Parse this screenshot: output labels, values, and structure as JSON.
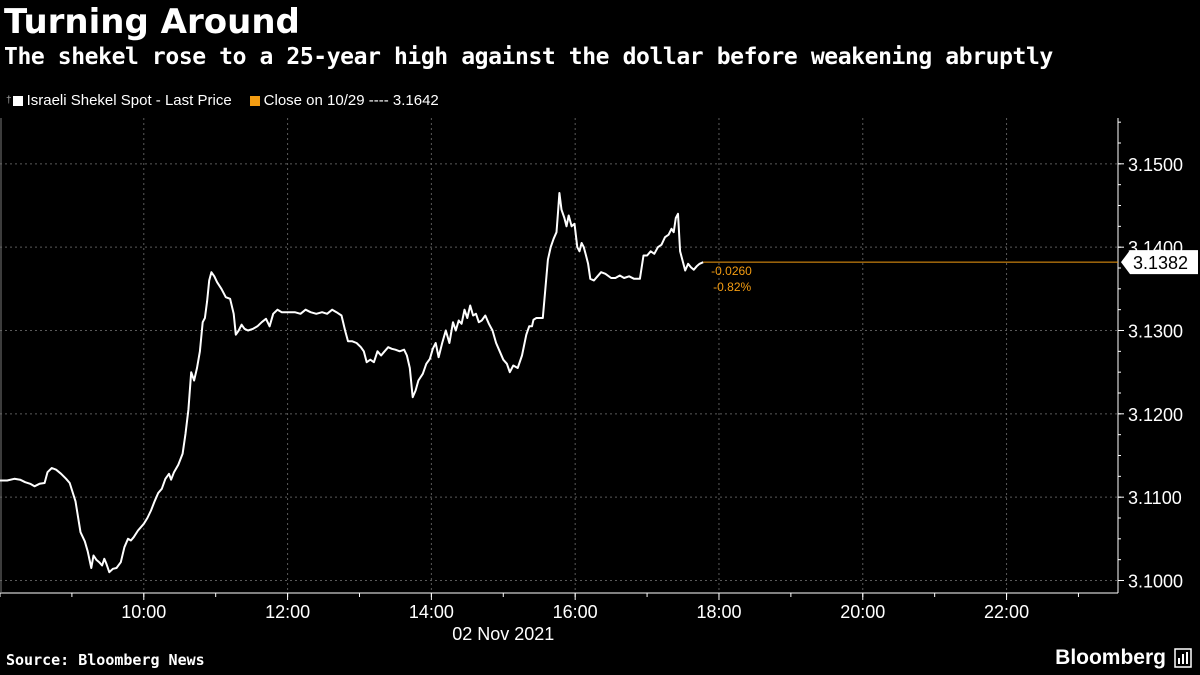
{
  "header": {
    "title": "Turning Around",
    "subtitle": "The shekel rose to a 25-year high against the dollar before weakening abruptly"
  },
  "legend": {
    "series_label": "Israeli Shekel Spot - Last Price",
    "reference_label": "Close on 10/29 ---- 3.1642"
  },
  "footer": {
    "source": "Source: Bloomberg News",
    "brand": "Bloomberg"
  },
  "colors": {
    "series": "#ffffff",
    "reference": "#f39c12",
    "grid": "#5a5a5a",
    "background": "#000000"
  },
  "chart_data": {
    "type": "line",
    "title": "Turning Around",
    "subtitle": "The shekel rose to a 25-year high against the dollar before weakening abruptly",
    "xlabel": "02 Nov 2021",
    "ylabel": "",
    "x_ticks": [
      "10:00",
      "12:00",
      "14:00",
      "16:00",
      "18:00",
      "20:00",
      "22:00"
    ],
    "y_ticks": [
      "3.1000",
      "3.1100",
      "3.1200",
      "3.1300",
      "3.1400",
      "3.1500"
    ],
    "ylim": [
      3.0985,
      3.1555
    ],
    "xlim_hours": [
      8.0,
      23.55
    ],
    "grid": true,
    "legend_position": "top-left",
    "y_axis_side": "right",
    "last_value": "3.1382",
    "change_abs": "-0.0260",
    "change_pct": "-0.82%",
    "series": [
      {
        "name": "Israeli Shekel Spot - Last Price",
        "points": [
          [
            8.0,
            3.112
          ],
          [
            8.1,
            3.112
          ],
          [
            8.2,
            3.1122
          ],
          [
            8.28,
            3.1121
          ],
          [
            8.35,
            3.1118
          ],
          [
            8.42,
            3.1116
          ],
          [
            8.48,
            3.1113
          ],
          [
            8.55,
            3.1116
          ],
          [
            8.62,
            3.1117
          ],
          [
            8.66,
            3.113
          ],
          [
            8.72,
            3.1135
          ],
          [
            8.78,
            3.1133
          ],
          [
            8.85,
            3.1128
          ],
          [
            8.92,
            3.1122
          ],
          [
            8.97,
            3.1117
          ],
          [
            9.05,
            3.1095
          ],
          [
            9.12,
            3.1058
          ],
          [
            9.18,
            3.1047
          ],
          [
            9.22,
            3.1035
          ],
          [
            9.27,
            3.1015
          ],
          [
            9.3,
            3.103
          ],
          [
            9.34,
            3.1025
          ],
          [
            9.38,
            3.1022
          ],
          [
            9.42,
            3.1018
          ],
          [
            9.45,
            3.1026
          ],
          [
            9.48,
            3.102
          ],
          [
            9.52,
            3.101
          ],
          [
            9.57,
            3.1014
          ],
          [
            9.62,
            3.1015
          ],
          [
            9.68,
            3.1022
          ],
          [
            9.73,
            3.104
          ],
          [
            9.78,
            3.105
          ],
          [
            9.82,
            3.1048
          ],
          [
            9.86,
            3.1052
          ],
          [
            9.92,
            3.106
          ],
          [
            10.0,
            3.1068
          ],
          [
            10.05,
            3.1075
          ],
          [
            10.1,
            3.1084
          ],
          [
            10.15,
            3.1095
          ],
          [
            10.2,
            3.1105
          ],
          [
            10.25,
            3.111
          ],
          [
            10.3,
            3.1122
          ],
          [
            10.35,
            3.1128
          ],
          [
            10.38,
            3.1121
          ],
          [
            10.42,
            3.113
          ],
          [
            10.48,
            3.1139
          ],
          [
            10.54,
            3.1152
          ],
          [
            10.58,
            3.1176
          ],
          [
            10.62,
            3.1205
          ],
          [
            10.66,
            3.125
          ],
          [
            10.7,
            3.124
          ],
          [
            10.74,
            3.1255
          ],
          [
            10.78,
            3.1275
          ],
          [
            10.82,
            3.131
          ],
          [
            10.85,
            3.1315
          ],
          [
            10.88,
            3.1335
          ],
          [
            10.91,
            3.136
          ],
          [
            10.94,
            3.137
          ],
          [
            10.98,
            3.1365
          ],
          [
            11.02,
            3.1358
          ],
          [
            11.08,
            3.135
          ],
          [
            11.14,
            3.134
          ],
          [
            11.2,
            3.1338
          ],
          [
            11.25,
            3.132
          ],
          [
            11.28,
            3.1295
          ],
          [
            11.32,
            3.13
          ],
          [
            11.36,
            3.1307
          ],
          [
            11.4,
            3.1302
          ],
          [
            11.45,
            3.13
          ],
          [
            11.52,
            3.1302
          ],
          [
            11.58,
            3.1305
          ],
          [
            11.64,
            3.131
          ],
          [
            11.7,
            3.1314
          ],
          [
            11.75,
            3.1305
          ],
          [
            11.8,
            3.132
          ],
          [
            11.86,
            3.1325
          ],
          [
            11.92,
            3.1322
          ],
          [
            12.0,
            3.1322
          ],
          [
            12.1,
            3.1322
          ],
          [
            12.18,
            3.132
          ],
          [
            12.25,
            3.1325
          ],
          [
            12.32,
            3.1322
          ],
          [
            12.4,
            3.132
          ],
          [
            12.48,
            3.1322
          ],
          [
            12.55,
            3.132
          ],
          [
            12.62,
            3.1325
          ],
          [
            12.68,
            3.1322
          ],
          [
            12.75,
            3.1318
          ],
          [
            12.8,
            3.13
          ],
          [
            12.84,
            3.1287
          ],
          [
            12.9,
            3.1287
          ],
          [
            12.96,
            3.1285
          ],
          [
            13.02,
            3.128
          ],
          [
            13.06,
            3.1275
          ],
          [
            13.1,
            3.1262
          ],
          [
            13.15,
            3.1265
          ],
          [
            13.2,
            3.1262
          ],
          [
            13.25,
            3.1275
          ],
          [
            13.3,
            3.127
          ],
          [
            13.35,
            3.1275
          ],
          [
            13.4,
            3.128
          ],
          [
            13.45,
            3.1278
          ],
          [
            13.5,
            3.1277
          ],
          [
            13.56,
            3.1275
          ],
          [
            13.62,
            3.1277
          ],
          [
            13.66,
            3.127
          ],
          [
            13.7,
            3.1255
          ],
          [
            13.74,
            3.122
          ],
          [
            13.78,
            3.1228
          ],
          [
            13.82,
            3.124
          ],
          [
            13.88,
            3.1248
          ],
          [
            13.93,
            3.126
          ],
          [
            13.98,
            3.1266
          ],
          [
            14.02,
            3.1278
          ],
          [
            14.06,
            3.1285
          ],
          [
            14.1,
            3.1268
          ],
          [
            14.15,
            3.1285
          ],
          [
            14.2,
            3.13
          ],
          [
            14.25,
            3.1285
          ],
          [
            14.3,
            3.131
          ],
          [
            14.34,
            3.13
          ],
          [
            14.38,
            3.1312
          ],
          [
            14.42,
            3.1308
          ],
          [
            14.46,
            3.1325
          ],
          [
            14.5,
            3.1315
          ],
          [
            14.54,
            3.133
          ],
          [
            14.58,
            3.1318
          ],
          [
            14.62,
            3.132
          ],
          [
            14.66,
            3.131
          ],
          [
            14.7,
            3.1312
          ],
          [
            14.75,
            3.1318
          ],
          [
            14.8,
            3.1308
          ],
          [
            14.85,
            3.13
          ],
          [
            14.9,
            3.1285
          ],
          [
            14.95,
            3.1275
          ],
          [
            15.0,
            3.1265
          ],
          [
            15.05,
            3.126
          ],
          [
            15.09,
            3.125
          ],
          [
            15.14,
            3.1258
          ],
          [
            15.2,
            3.1255
          ],
          [
            15.26,
            3.127
          ],
          [
            15.32,
            3.1295
          ],
          [
            15.36,
            3.1305
          ],
          [
            15.4,
            3.1305
          ],
          [
            15.42,
            3.1313
          ],
          [
            15.46,
            3.1315
          ],
          [
            15.5,
            3.1315
          ],
          [
            15.55,
            3.1315
          ],
          [
            15.58,
            3.1345
          ],
          [
            15.62,
            3.1385
          ],
          [
            15.66,
            3.14
          ],
          [
            15.7,
            3.141
          ],
          [
            15.74,
            3.1418
          ],
          [
            15.76,
            3.144
          ],
          [
            15.78,
            3.1465
          ],
          [
            15.81,
            3.1445
          ],
          [
            15.85,
            3.1435
          ],
          [
            15.88,
            3.1425
          ],
          [
            15.91,
            3.1438
          ],
          [
            15.95,
            3.1425
          ],
          [
            15.99,
            3.1428
          ],
          [
            16.03,
            3.14
          ],
          [
            16.06,
            3.1395
          ],
          [
            16.09,
            3.1405
          ],
          [
            16.12,
            3.14
          ],
          [
            16.15,
            3.139
          ],
          [
            16.18,
            3.138
          ],
          [
            16.21,
            3.1362
          ],
          [
            16.26,
            3.136
          ],
          [
            16.31,
            3.1365
          ],
          [
            16.36,
            3.137
          ],
          [
            16.42,
            3.1368
          ],
          [
            16.5,
            3.1363
          ],
          [
            16.56,
            3.1363
          ],
          [
            16.62,
            3.1366
          ],
          [
            16.68,
            3.1363
          ],
          [
            16.75,
            3.1365
          ],
          [
            16.82,
            3.1362
          ],
          [
            16.9,
            3.1362
          ],
          [
            16.95,
            3.139
          ],
          [
            17.0,
            3.139
          ],
          [
            17.05,
            3.1395
          ],
          [
            17.1,
            3.1392
          ],
          [
            17.15,
            3.14
          ],
          [
            17.2,
            3.1403
          ],
          [
            17.25,
            3.1412
          ],
          [
            17.3,
            3.1415
          ],
          [
            17.34,
            3.1422
          ],
          [
            17.37,
            3.1418
          ],
          [
            17.4,
            3.1435
          ],
          [
            17.43,
            3.144
          ],
          [
            17.46,
            3.1395
          ],
          [
            17.5,
            3.1382
          ],
          [
            17.53,
            3.1372
          ],
          [
            17.57,
            3.138
          ],
          [
            17.61,
            3.1376
          ],
          [
            17.65,
            3.1373
          ],
          [
            17.69,
            3.1377
          ],
          [
            17.73,
            3.138
          ],
          [
            17.78,
            3.1382
          ]
        ]
      }
    ],
    "reference_line": {
      "label": "Close on 10/29",
      "value": 3.1642
    }
  }
}
